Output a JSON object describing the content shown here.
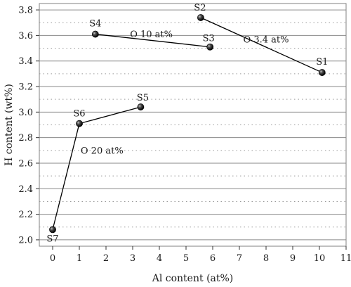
{
  "chart_data": {
    "type": "scatter",
    "xlabel": "Al content (at%)",
    "ylabel": "H content (wt%)",
    "xlim": [
      -0.5,
      11
    ],
    "ylim": [
      1.95,
      3.85
    ],
    "xticks": [
      "0",
      "1",
      "2",
      "3",
      "4",
      "5",
      "6",
      "7",
      "8",
      "9",
      "10",
      "11"
    ],
    "yticks": [
      "2.0",
      "2.2",
      "2.4",
      "2.6",
      "2.8",
      "3.0",
      "3.2",
      "3.4",
      "3.6",
      "3.8"
    ],
    "grid": "horizontal",
    "points": [
      {
        "label": "S1",
        "x": 10.1,
        "y": 3.31
      },
      {
        "label": "S2",
        "x": 5.55,
        "y": 3.74
      },
      {
        "label": "S3",
        "x": 5.9,
        "y": 3.51
      },
      {
        "label": "S4",
        "x": 1.6,
        "y": 3.61
      },
      {
        "label": "S5",
        "x": 3.3,
        "y": 3.04
      },
      {
        "label": "S6",
        "x": 1.0,
        "y": 2.91
      },
      {
        "label": "S7",
        "x": 0.0,
        "y": 2.08
      }
    ],
    "series": [
      {
        "group": "O 3.4 at%",
        "points": [
          "S2",
          "S1"
        ]
      },
      {
        "group": "O 10 at%",
        "points": [
          "S4",
          "S3"
        ]
      },
      {
        "group": "O 20 at%",
        "points": [
          "S7",
          "S6",
          "S5"
        ]
      }
    ],
    "annotations": [
      {
        "text": "O 3.4 at%",
        "x": 8.0,
        "y": 3.57
      },
      {
        "text": "O 10 at%",
        "x": 3.7,
        "y": 3.61
      },
      {
        "text": "O 20 at%",
        "x": 1.85,
        "y": 2.7
      }
    ]
  }
}
